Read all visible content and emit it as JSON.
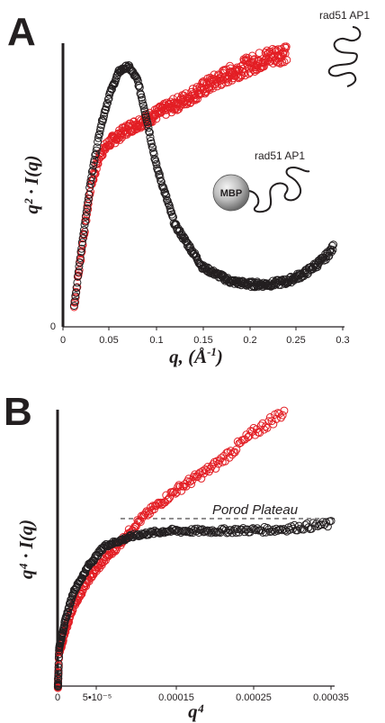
{
  "chart_data": [
    {
      "panel": "A",
      "type": "scatter",
      "ylabel": "q² · I(q)",
      "xlabel_parts": [
        "q, (",
        "Å",
        "-1",
        ")"
      ],
      "xlim": [
        0,
        0.3
      ],
      "x_ticks": [
        "0",
        "0.05",
        "0.1",
        "0.15",
        "0.2",
        "0.25",
        "0.3"
      ],
      "y_ticks": [
        "0"
      ],
      "annotations": {
        "construct_top": "rad51 AP1",
        "construct_bottom": "rad51 AP1",
        "fusion_tag": "MBP"
      },
      "series": [
        {
          "color": "#e31e24",
          "x_range": [
            0.012,
            0.24
          ],
          "trend_x": [
            0.012,
            0.02,
            0.03,
            0.04,
            0.05,
            0.07,
            0.1,
            0.13,
            0.16,
            0.19,
            0.22,
            0.24
          ],
          "trend_y": [
            0.07,
            0.27,
            0.5,
            0.61,
            0.65,
            0.7,
            0.75,
            0.8,
            0.86,
            0.91,
            0.95,
            0.97
          ]
        },
        {
          "color": "#231f20",
          "x_range": [
            0.012,
            0.29
          ],
          "trend_x": [
            0.012,
            0.02,
            0.03,
            0.04,
            0.05,
            0.06,
            0.07,
            0.08,
            0.09,
            0.1,
            0.12,
            0.15,
            0.18,
            0.2,
            0.22,
            0.24,
            0.26,
            0.28,
            0.29
          ],
          "trend_y": [
            0.07,
            0.28,
            0.52,
            0.7,
            0.82,
            0.9,
            0.92,
            0.87,
            0.73,
            0.57,
            0.36,
            0.21,
            0.16,
            0.15,
            0.15,
            0.16,
            0.19,
            0.24,
            0.28
          ]
        }
      ]
    },
    {
      "panel": "B",
      "type": "scatter",
      "ylabel": "q⁴ · I(q)",
      "xlabel": "q⁴",
      "xlim": [
        0,
        0.00035
      ],
      "x_ticks": [
        "0",
        "5•10⁻⁵",
        "0.00015",
        "0.00025",
        "0.00035"
      ],
      "x_tick_values": [
        0,
        5e-05,
        0.00015,
        0.00025,
        0.00035
      ],
      "annotations": {
        "plateau": "Porod Plateau"
      },
      "plateau_level": 0.62,
      "series": [
        {
          "color": "#e31e24",
          "x_range": [
            5e-07,
            0.00029
          ],
          "trend_x": [
            5e-07,
            2e-06,
            1e-05,
            2e-05,
            4e-05,
            6e-05,
            8e-05,
            0.0001,
            0.00012,
            0.00015,
            0.0002,
            0.00025,
            0.00029
          ],
          "trend_y": [
            0.0,
            0.12,
            0.2,
            0.29,
            0.39,
            0.46,
            0.52,
            0.59,
            0.64,
            0.71,
            0.8,
            0.92,
            1.0
          ]
        },
        {
          "color": "#231f20",
          "x_range": [
            5e-07,
            0.00035
          ],
          "trend_x": [
            5e-07,
            2e-06,
            1e-05,
            2e-05,
            4e-05,
            6e-05,
            8e-05,
            0.0001,
            0.00014,
            0.0002,
            0.00028,
            0.00035
          ],
          "trend_y": [
            0.0,
            0.14,
            0.24,
            0.34,
            0.44,
            0.51,
            0.53,
            0.55,
            0.565,
            0.565,
            0.57,
            0.59
          ]
        }
      ]
    }
  ]
}
